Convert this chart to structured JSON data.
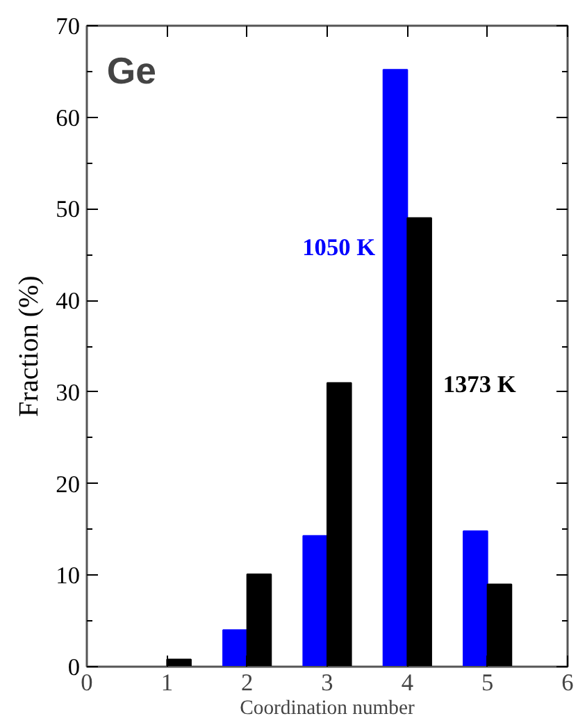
{
  "chart_data": {
    "type": "bar",
    "title": "Ge",
    "xlabel": "Coordination number",
    "ylabel": "Fraction (%)",
    "x": [
      1,
      2,
      3,
      4,
      5
    ],
    "series": [
      {
        "name": "1050 K",
        "color": "#0000ff",
        "values": [
          0,
          4,
          14.3,
          65.2,
          14.8
        ]
      },
      {
        "name": "1373 K",
        "color": "#000000",
        "values": [
          0.8,
          10.1,
          31,
          49,
          9
        ]
      }
    ],
    "xlim": [
      0,
      6
    ],
    "xticks": [
      0,
      1,
      2,
      3,
      4,
      5,
      6
    ],
    "ylim": [
      0,
      70
    ],
    "yticks": [
      0,
      10,
      20,
      30,
      40,
      50,
      60,
      70
    ],
    "grid": false,
    "legend": "right"
  }
}
